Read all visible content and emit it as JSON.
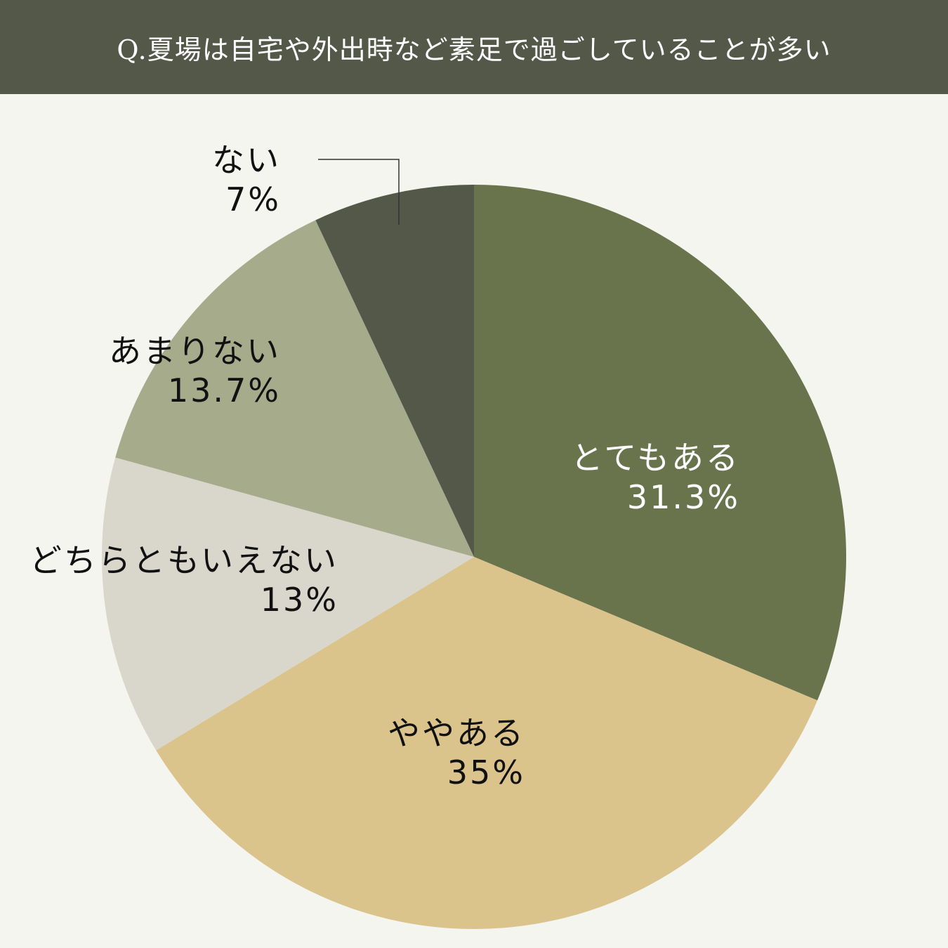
{
  "title": "Q.夏場は自宅や外出時など素足で過ごしていることが多い",
  "chart_data": {
    "type": "pie",
    "title": "Q.夏場は自宅や外出時など素足で過ごしていることが多い",
    "start_angle_deg": 0,
    "direction": "clockwise",
    "slices": [
      {
        "label": "とてもある",
        "value": 31.3,
        "value_label": "31.3%",
        "color": "#69744c",
        "text_color": "#ffffff"
      },
      {
        "label": "ややある",
        "value": 35,
        "value_label": "35%",
        "color": "#dbc38c",
        "text_color": "#111111"
      },
      {
        "label": "どちらともいえない",
        "value": 13,
        "value_label": "13%",
        "color": "#d9d7cc",
        "text_color": "#111111"
      },
      {
        "label": "あまりない",
        "value": 13.7,
        "value_label": "13.7%",
        "color": "#a6ab8c",
        "text_color": "#111111"
      },
      {
        "label": "ない",
        "value": 7,
        "value_label": "7%",
        "color": "#545848",
        "text_color": "#111111"
      }
    ]
  }
}
